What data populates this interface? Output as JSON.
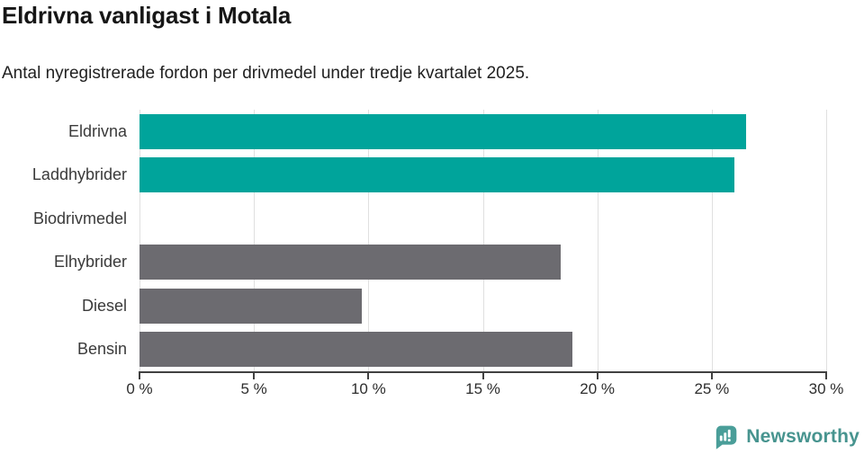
{
  "title": "Eldrivna vanligast i Motala",
  "subtitle": "Antal nyregistrerade fordon per drivmedel under tredje kvartalet 2025.",
  "colors": {
    "teal": "#00a49b",
    "gray": "#6c6b70",
    "axis": "#414141",
    "grid": "#e0e0e0",
    "logo": "#47948f",
    "logo_icon": "#4a9e99"
  },
  "chart_data": {
    "type": "bar",
    "orientation": "horizontal",
    "title": "Eldrivna vanligast i Motala",
    "subtitle": "Antal nyregistrerade fordon per drivmedel under tredje kvartalet 2025.",
    "categories": [
      "Eldrivna",
      "Laddhybrider",
      "Biodrivmedel",
      "Elhybrider",
      "Diesel",
      "Bensin"
    ],
    "values": [
      26.5,
      26.0,
      0,
      18.4,
      9.7,
      18.9
    ],
    "unit": "%",
    "xlim": [
      0,
      30
    ],
    "xticks": [
      0,
      5,
      10,
      15,
      20,
      25,
      30
    ],
    "tick_suffix": " %",
    "bar_colors": [
      "#00a49b",
      "#00a49b",
      "#00a49b",
      "#6c6b70",
      "#6c6b70",
      "#6c6b70"
    ],
    "grid": true,
    "legend": false,
    "value_labels": false
  },
  "footer": {
    "brand": "Newsworthy"
  }
}
